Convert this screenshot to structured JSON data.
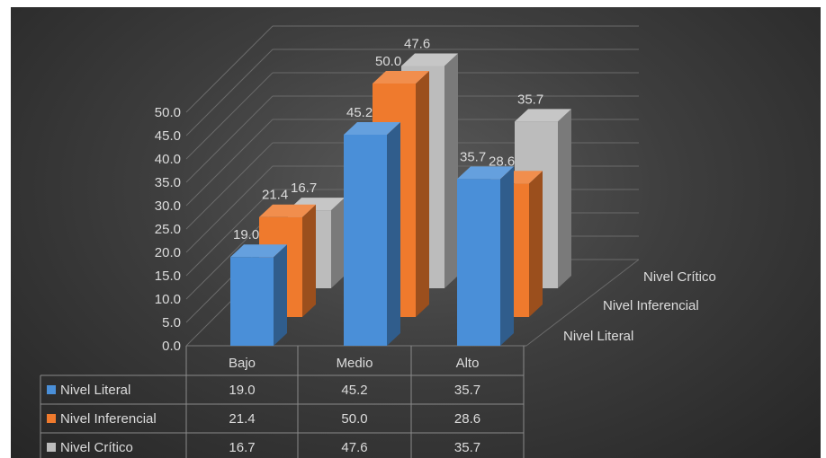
{
  "chart_data": {
    "type": "bar",
    "title": "",
    "categories": [
      "Bajo",
      "Medio",
      "Alto"
    ],
    "series": [
      {
        "name": "Nivel Literal",
        "values": [
          19.0,
          45.2,
          35.7
        ],
        "color": "#4a8fd8"
      },
      {
        "name": "Nivel Inferencial",
        "values": [
          21.4,
          50.0,
          28.6
        ],
        "color": "#ef7a2d"
      },
      {
        "name": "Nivel Crítico",
        "values": [
          16.7,
          47.6,
          35.7
        ],
        "color": "#bcbcbc"
      }
    ],
    "y_ticks": [
      "0.0",
      "5.0",
      "10.0",
      "15.0",
      "20.0",
      "25.0",
      "30.0",
      "35.0",
      "40.0",
      "45.0",
      "50.0"
    ],
    "ylim": [
      0,
      50
    ],
    "value_labels": [
      [
        "19.0",
        "45.2",
        "35.7"
      ],
      [
        "21.4",
        "50.0",
        "28.6"
      ],
      [
        "16.7",
        "47.6",
        "35.7"
      ]
    ],
    "data_table": {
      "header": [
        "Bajo",
        "Medio",
        "Alto"
      ],
      "rows": [
        {
          "series": "Nivel Literal",
          "cells": [
            "19.0",
            "45.2",
            "35.7"
          ]
        },
        {
          "series": "Nivel Inferencial",
          "cells": [
            "21.4",
            "50.0",
            "28.6"
          ]
        },
        {
          "series": "Nivel Crítico",
          "cells": [
            "16.7",
            "47.6",
            "35.7"
          ]
        }
      ]
    },
    "background": "#3a3a3a",
    "text_color": "#dcdcdc",
    "grid": true,
    "style": "3d-column"
  }
}
